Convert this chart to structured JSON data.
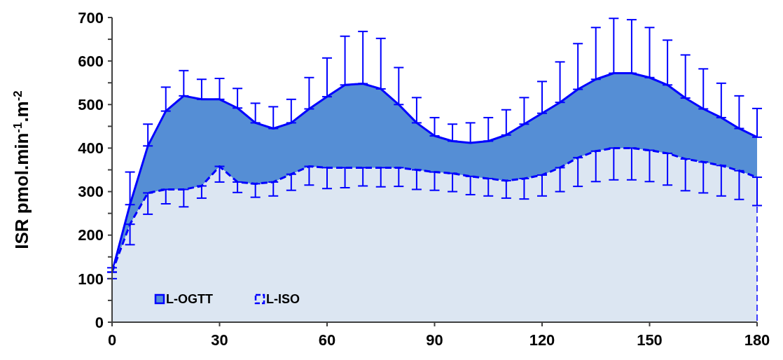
{
  "chart_data": {
    "type": "area",
    "ylabel": "ISR pmol.min$^{-1}$.m$^{-2}$",
    "x": [
      0,
      5,
      10,
      15,
      20,
      25,
      30,
      35,
      40,
      45,
      50,
      55,
      60,
      65,
      70,
      75,
      80,
      85,
      90,
      95,
      100,
      105,
      110,
      115,
      120,
      125,
      130,
      135,
      140,
      145,
      150,
      155,
      160,
      165,
      170,
      175,
      180
    ],
    "xlim": [
      0,
      180
    ],
    "xticks": [
      0,
      30,
      60,
      90,
      120,
      150,
      180
    ],
    "ylim": [
      0,
      700
    ],
    "yticks": [
      0,
      {
        "value": 50,
        "label": null
      },
      100,
      {
        "value": 150,
        "label": null
      },
      200,
      {
        "value": 250,
        "label": null
      },
      300,
      {
        "value": 350,
        "label": null
      },
      400,
      {
        "value": 450,
        "label": null
      },
      500,
      {
        "value": 550,
        "label": null
      },
      600,
      {
        "value": 650,
        "label": null
      },
      700
    ],
    "grid": false,
    "legend": "bottom left",
    "series": [
      {
        "name": "L-OGTT",
        "color": "#558ed5",
        "line_style": "solid",
        "values": [
          115,
          270,
          405,
          485,
          520,
          512,
          512,
          492,
          458,
          445,
          458,
          490,
          518,
          545,
          548,
          536,
          500,
          458,
          428,
          416,
          412,
          416,
          430,
          455,
          480,
          505,
          535,
          558,
          572,
          572,
          562,
          545,
          515,
          490,
          470,
          445,
          425
        ],
        "errors": [
          [
            115,
            125
          ],
          [
            270,
            345
          ],
          [
            405,
            455
          ],
          [
            485,
            540
          ],
          [
            520,
            578
          ],
          [
            512,
            558
          ],
          [
            512,
            560
          ],
          [
            492,
            537
          ],
          [
            458,
            503
          ],
          [
            445,
            495
          ],
          [
            458,
            512
          ],
          [
            490,
            562
          ],
          [
            518,
            607
          ],
          [
            545,
            657
          ],
          [
            548,
            668
          ],
          [
            536,
            652
          ],
          [
            500,
            585
          ],
          [
            458,
            516
          ],
          [
            428,
            470
          ],
          [
            416,
            455
          ],
          [
            412,
            458
          ],
          [
            416,
            470
          ],
          [
            430,
            488
          ],
          [
            455,
            516
          ],
          [
            480,
            553
          ],
          [
            505,
            598
          ],
          [
            535,
            640
          ],
          [
            558,
            677
          ],
          [
            572,
            698
          ],
          [
            572,
            695
          ],
          [
            562,
            677
          ],
          [
            545,
            648
          ],
          [
            515,
            614
          ],
          [
            490,
            582
          ],
          [
            470,
            549
          ],
          [
            445,
            520
          ],
          [
            425,
            491
          ]
        ]
      },
      {
        "name": "L-ISO",
        "color": "#dce6f2",
        "line_style": "dashed",
        "values": [
          115,
          225,
          297,
          305,
          305,
          313,
          358,
          322,
          318,
          322,
          340,
          358,
          355,
          355,
          355,
          355,
          355,
          350,
          345,
          342,
          335,
          330,
          325,
          330,
          338,
          355,
          378,
          393,
          400,
          400,
          395,
          388,
          375,
          368,
          360,
          348,
          333
        ],
        "errors": [
          [
            100,
            115
          ],
          [
            178,
            225
          ],
          [
            248,
            297
          ],
          [
            272,
            305
          ],
          [
            265,
            305
          ],
          [
            285,
            313
          ],
          [
            322,
            358
          ],
          [
            298,
            322
          ],
          [
            287,
            318
          ],
          [
            290,
            322
          ],
          [
            303,
            340
          ],
          [
            315,
            358
          ],
          [
            307,
            355
          ],
          [
            309,
            355
          ],
          [
            313,
            355
          ],
          [
            311,
            355
          ],
          [
            312,
            355
          ],
          [
            305,
            350
          ],
          [
            303,
            345
          ],
          [
            300,
            342
          ],
          [
            293,
            335
          ],
          [
            290,
            330
          ],
          [
            285,
            325
          ],
          [
            283,
            330
          ],
          [
            290,
            338
          ],
          [
            300,
            355
          ],
          [
            312,
            378
          ],
          [
            323,
            393
          ],
          [
            327,
            400
          ],
          [
            327,
            400
          ],
          [
            323,
            395
          ],
          [
            315,
            388
          ],
          [
            302,
            375
          ],
          [
            297,
            368
          ],
          [
            290,
            360
          ],
          [
            282,
            348
          ],
          [
            268,
            333
          ]
        ]
      }
    ]
  }
}
